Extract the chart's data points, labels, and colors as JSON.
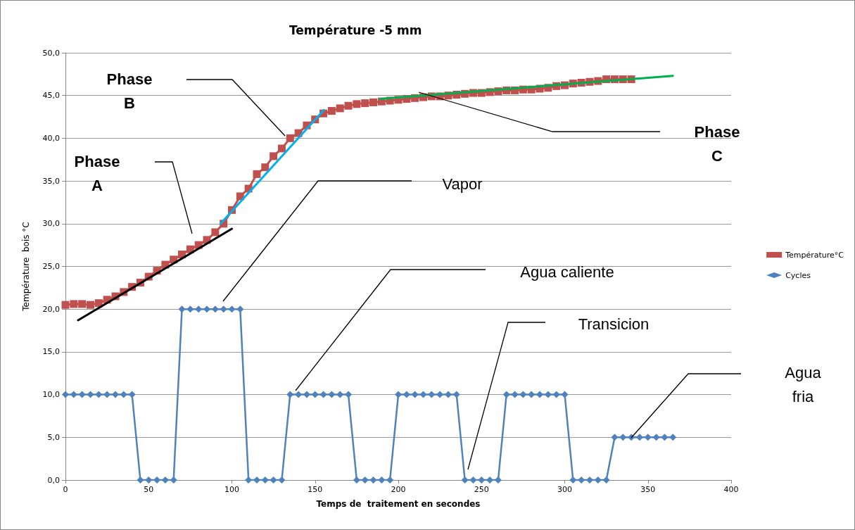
{
  "chart_data": {
    "type": "line",
    "title": "Température -5 mm",
    "xlabel": "Temps de  traitement en secondes",
    "ylabel": "Température  bois °C",
    "xlim": [
      0,
      400
    ],
    "xticks": [
      0,
      50,
      100,
      150,
      200,
      250,
      300,
      350,
      400
    ],
    "ylim": [
      0,
      50
    ],
    "yticks": [
      {
        "value": 0,
        "label": "0,0"
      },
      {
        "value": 5,
        "label": "5,0"
      },
      {
        "value": 10,
        "label": "10,0"
      },
      {
        "value": 15,
        "label": "15,0"
      },
      {
        "value": 20,
        "label": "20,0"
      },
      {
        "value": 25,
        "label": "25,0"
      },
      {
        "value": 30,
        "label": "30,0"
      },
      {
        "value": 35,
        "label": "35,0"
      },
      {
        "value": 40,
        "label": "40,0"
      },
      {
        "value": 45,
        "label": "45,0"
      },
      {
        "value": 50,
        "label": "50,0"
      }
    ],
    "grid": "y",
    "legend": "right",
    "series": [
      {
        "name": "Température°C",
        "color": "#c0504d",
        "marker": "square",
        "x": [
          0,
          5,
          10,
          15,
          20,
          25,
          30,
          35,
          40,
          45,
          50,
          55,
          60,
          65,
          70,
          75,
          80,
          85,
          90,
          95,
          100,
          105,
          110,
          115,
          120,
          125,
          130,
          135,
          140,
          145,
          150,
          155,
          160,
          165,
          170,
          175,
          180,
          185,
          190,
          195,
          200,
          205,
          210,
          215,
          220,
          225,
          230,
          235,
          240,
          245,
          250,
          255,
          260,
          265,
          270,
          275,
          280,
          285,
          290,
          295,
          300,
          305,
          310,
          315,
          320,
          325,
          330,
          335,
          340
        ],
        "values": [
          20.5,
          20.6,
          20.6,
          20.5,
          20.7,
          21.1,
          21.5,
          22.0,
          22.6,
          23.1,
          23.8,
          24.5,
          25.2,
          25.8,
          26.4,
          27.0,
          27.5,
          28.1,
          29.0,
          30.0,
          31.6,
          33.2,
          34.1,
          35.8,
          36.6,
          37.9,
          38.8,
          40.0,
          40.6,
          41.5,
          42.2,
          42.9,
          43.2,
          43.5,
          43.8,
          44.0,
          44.1,
          44.2,
          44.3,
          44.4,
          44.5,
          44.6,
          44.7,
          44.8,
          44.9,
          44.9,
          45.0,
          45.1,
          45.2,
          45.3,
          45.3,
          45.4,
          45.5,
          45.6,
          45.6,
          45.7,
          45.7,
          45.8,
          45.9,
          46.1,
          46.2,
          46.4,
          46.5,
          46.6,
          46.7,
          46.9,
          46.9,
          46.9,
          46.9
        ]
      },
      {
        "name": "Cycles",
        "color": "#4f81bd",
        "marker": "diamond",
        "x": [
          0,
          5,
          10,
          15,
          20,
          25,
          30,
          35,
          40,
          45,
          50,
          55,
          60,
          65,
          70,
          75,
          80,
          85,
          90,
          95,
          100,
          105,
          110,
          115,
          120,
          125,
          130,
          135,
          140,
          145,
          150,
          155,
          160,
          165,
          170,
          175,
          180,
          185,
          190,
          195,
          200,
          205,
          210,
          215,
          220,
          225,
          230,
          235,
          240,
          245,
          250,
          255,
          260,
          265,
          270,
          275,
          280,
          285,
          290,
          295,
          300,
          305,
          310,
          315,
          320,
          325,
          330,
          335,
          340,
          345,
          350,
          355,
          360,
          365
        ],
        "values": [
          10,
          10,
          10,
          10,
          10,
          10,
          10,
          10,
          10,
          0,
          0,
          0,
          0,
          0,
          20,
          20,
          20,
          20,
          20,
          20,
          20,
          20,
          0,
          0,
          0,
          0,
          0,
          10,
          10,
          10,
          10,
          10,
          10,
          10,
          10,
          0,
          0,
          0,
          0,
          0,
          10,
          10,
          10,
          10,
          10,
          10,
          10,
          10,
          0,
          0,
          0,
          0,
          0,
          10,
          10,
          10,
          10,
          10,
          10,
          10,
          10,
          0,
          0,
          0,
          0,
          0,
          5,
          5,
          5,
          5,
          5,
          5,
          5,
          5
        ]
      },
      {
        "color": "#000000",
        "marker": "none",
        "x": [
          7.6,
          100
        ],
        "values": [
          18.7,
          29.4
        ]
      },
      {
        "color": "#00b0f0",
        "marker": "none",
        "x": [
          93.2,
          155.3
        ],
        "values": [
          30.0,
          43.3
        ]
      },
      {
        "color": "#00b050",
        "marker": "none",
        "x": [
          189,
          365
        ],
        "values": [
          44.6,
          47.3
        ]
      }
    ],
    "annotations": [
      "Phase\nB",
      "Phase\nA",
      "Phase\nC",
      "Vapor",
      "Agua caliente",
      "Transicion",
      "Agua\nfria"
    ]
  }
}
